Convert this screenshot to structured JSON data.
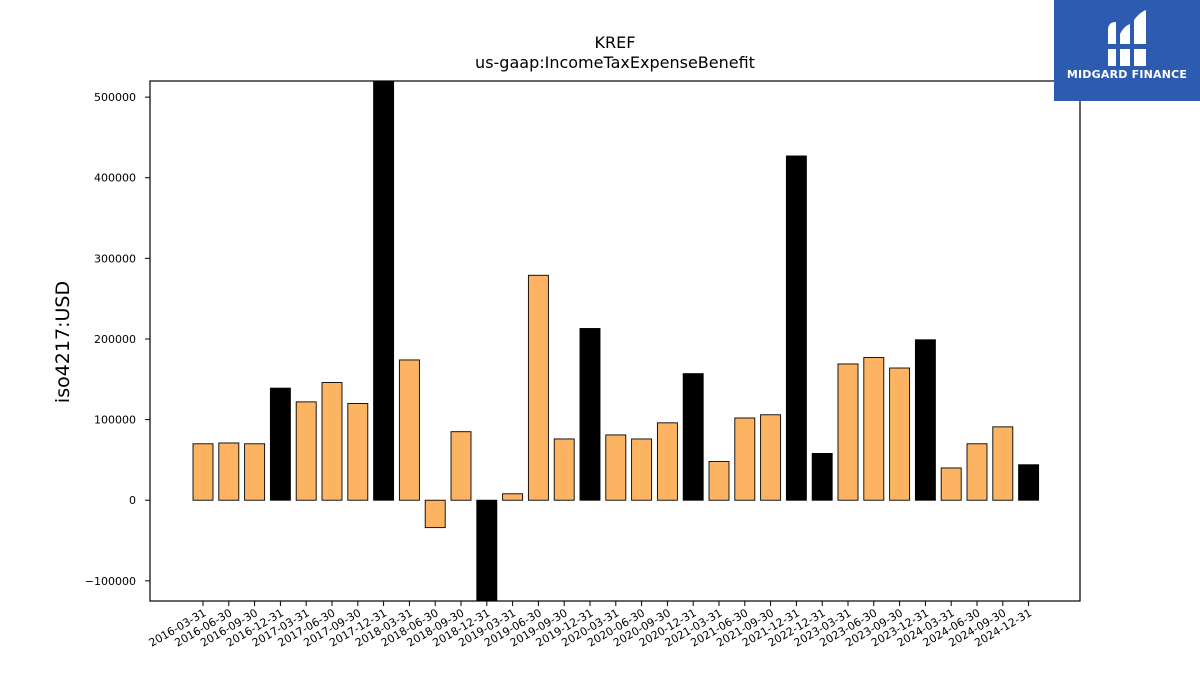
{
  "logo": {
    "text": "MIDGARD FINANCE",
    "bg_color": "#2d5bb0"
  },
  "chart_data": {
    "type": "bar",
    "title": "KREF",
    "subtitle": "us-gaap:IncomeTaxExpenseBenefit",
    "xlabel": "",
    "ylabel": "iso4217:USD",
    "ylim": [
      -125000,
      520000
    ],
    "yticks": [
      -100000,
      0,
      100000,
      200000,
      300000,
      400000,
      500000
    ],
    "grid": false,
    "colors": {
      "quarter": "#fdb462",
      "year_end": "#000000"
    },
    "categories": [
      "2016-03-31",
      "2016-06-30",
      "2016-09-30",
      "2016-12-31",
      "2017-03-31",
      "2017-06-30",
      "2017-09-30",
      "2017-12-31",
      "2018-03-31",
      "2018-06-30",
      "2018-09-30",
      "2018-12-31",
      "2019-03-31",
      "2019-06-30",
      "2019-09-30",
      "2019-12-31",
      "2020-03-31",
      "2020-06-30",
      "2020-09-30",
      "2020-12-31",
      "2021-03-31",
      "2021-06-30",
      "2021-09-30",
      "2021-12-31",
      "2022-12-31",
      "2023-03-31",
      "2023-06-30",
      "2023-09-30",
      "2023-12-31",
      "2024-03-31",
      "2024-06-30",
      "2024-09-30",
      "2024-12-31"
    ],
    "values": [
      70000,
      71000,
      70000,
      139000,
      122000,
      146000,
      120000,
      560000,
      174000,
      -34000,
      85000,
      -130000,
      8000,
      279000,
      76000,
      213000,
      81000,
      76000,
      96000,
      157000,
      48000,
      102000,
      106000,
      427000,
      58000,
      169000,
      177000,
      164000,
      199000,
      40000,
      70000,
      91000,
      44000
    ],
    "highlight": [
      false,
      false,
      false,
      true,
      false,
      false,
      false,
      true,
      false,
      false,
      false,
      true,
      false,
      false,
      false,
      true,
      false,
      false,
      false,
      true,
      false,
      false,
      false,
      true,
      true,
      false,
      false,
      false,
      true,
      false,
      false,
      false,
      true
    ]
  }
}
